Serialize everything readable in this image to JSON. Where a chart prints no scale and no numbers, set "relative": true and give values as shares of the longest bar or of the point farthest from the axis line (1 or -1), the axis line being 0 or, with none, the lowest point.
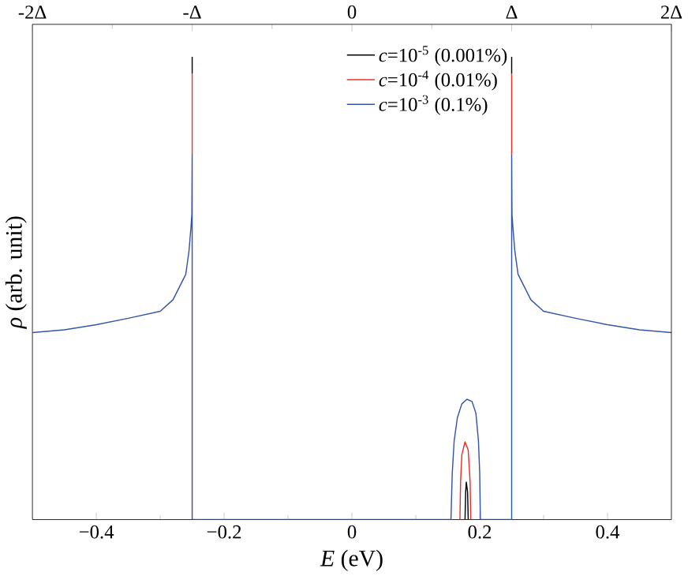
{
  "chart_data": {
    "type": "line",
    "relative": true,
    "xlabel": "*E* (eV)",
    "ylabel": "*ρ* (arb. unit)",
    "xlim": [
      -0.5,
      0.5
    ],
    "xticks": [
      {
        "value": -0.4,
        "label": "−0.4"
      },
      {
        "value": -0.2,
        "label": "−0.2"
      },
      0,
      0.2,
      0.4
    ],
    "x2lim": [
      -2,
      2
    ],
    "x2ticks": [
      {
        "value": -2,
        "label": "-2Δ"
      },
      {
        "value": -1,
        "label": "-Δ"
      },
      0,
      {
        "value": 1,
        "label": "Δ"
      },
      {
        "value": 2,
        "label": "2Δ"
      }
    ],
    "legend": "top",
    "grid": false,
    "series": [
      {
        "name": "*c*=10$^{-5}$ (0.001%)",
        "color": "#000000",
        "x": [
          -0.25,
          -0.25,
          0,
          0.177,
          0.178,
          0.179,
          0.181,
          0.182,
          0.2,
          0.25,
          0.25
        ],
        "values": [
          0.964,
          1,
          null,
          0,
          0.06,
          0.081,
          0.06,
          0,
          null,
          0.964,
          1
        ]
      },
      {
        "name": "*c*=10$^{-4}$ (0.01%)",
        "color": "#e8302c",
        "x": [
          -0.25,
          -0.25,
          0,
          0.169,
          0.17,
          0.172,
          0.177,
          0.182,
          0.185,
          0.186,
          0.2,
          0.25,
          0.25
        ],
        "values": [
          0.788,
          0.964,
          null,
          0,
          0.08,
          0.14,
          0.168,
          0.15,
          0.08,
          0,
          null,
          0.788,
          0.964
        ]
      },
      {
        "name": "*c*=10$^{-3}$ (0.1%)",
        "color": "#3556a8",
        "x": [
          -0.5,
          -0.45,
          -0.4,
          -0.35,
          -0.3,
          -0.28,
          -0.26,
          -0.255,
          -0.252,
          -0.2505,
          -0.25,
          -0.25,
          0.155,
          0.157,
          0.16,
          0.165,
          0.172,
          0.18,
          0.188,
          0.194,
          0.198,
          0.2,
          0.201,
          0.25,
          0.25,
          0.2505,
          0.252,
          0.255,
          0.26,
          0.28,
          0.3,
          0.35,
          0.4,
          0.45,
          0.5
        ],
        "values": [
          0.404,
          0.41,
          0.421,
          0.435,
          0.45,
          0.475,
          0.53,
          0.58,
          0.63,
          0.66,
          0.788,
          0,
          0,
          0.1,
          0.17,
          0.22,
          0.25,
          0.26,
          0.255,
          0.23,
          0.17,
          0.1,
          0,
          0,
          0.788,
          0.66,
          0.63,
          0.58,
          0.53,
          0.475,
          0.45,
          0.435,
          0.421,
          0.41,
          0.404
        ]
      }
    ]
  }
}
